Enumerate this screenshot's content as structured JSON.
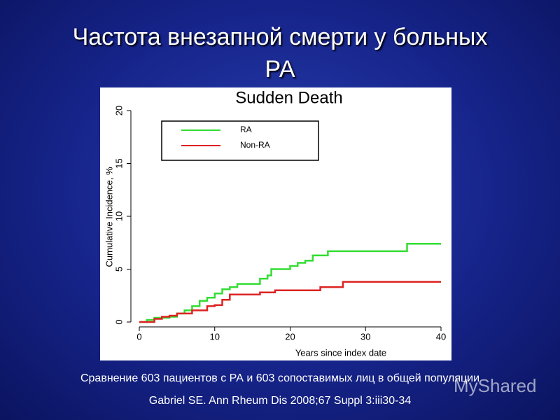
{
  "header": {
    "title_line1": "Частота внезапной смерти у больных",
    "title_line2": "РА"
  },
  "chart_data": {
    "type": "line",
    "title": "Sudden Death",
    "x_label": "Years since index date",
    "y_label": "Cumulative Incidence, %",
    "xlim": [
      0,
      40
    ],
    "ylim": [
      0,
      20
    ],
    "xticks": [
      0,
      10,
      20,
      30,
      40
    ],
    "yticks": [
      0,
      5,
      10,
      15,
      20
    ],
    "series": [
      {
        "name": "RA",
        "color": "#33dd33",
        "x": [
          0,
          1,
          1,
          2,
          2,
          4,
          4,
          5,
          5,
          6,
          6,
          7,
          7,
          8,
          8,
          9,
          9,
          10,
          10,
          11,
          11,
          12,
          12,
          13,
          13,
          16,
          16,
          17,
          17,
          17.5,
          17.5,
          20,
          20,
          21,
          21,
          22,
          22,
          23,
          23,
          25,
          25,
          35.5,
          35.5,
          40
        ],
        "values": [
          0,
          0,
          0.2,
          0.2,
          0.4,
          0.4,
          0.5,
          0.5,
          0.8,
          0.8,
          1.1,
          1.1,
          1.5,
          1.5,
          2,
          2,
          2.3,
          2.3,
          2.7,
          2.7,
          3.1,
          3.1,
          3.3,
          3.3,
          3.6,
          3.6,
          4.1,
          4.1,
          4.4,
          4.4,
          5,
          5,
          5.3,
          5.3,
          5.6,
          5.6,
          5.8,
          5.8,
          6.3,
          6.3,
          6.7,
          6.7,
          7.4,
          7.4
        ]
      },
      {
        "name": "Non-RA",
        "color": "#dd2222",
        "x": [
          0,
          2,
          2,
          3,
          3,
          4,
          4,
          5,
          5,
          7,
          7,
          9,
          9,
          10,
          10,
          11,
          11,
          12,
          12,
          16,
          16,
          18,
          18,
          24,
          24,
          27,
          27,
          40
        ],
        "values": [
          0,
          0,
          0.3,
          0.3,
          0.5,
          0.5,
          0.6,
          0.6,
          0.8,
          0.8,
          1.1,
          1.1,
          1.5,
          1.5,
          1.6,
          1.6,
          2.1,
          2.1,
          2.6,
          2.6,
          2.8,
          2.8,
          3,
          3,
          3.3,
          3.3,
          3.8,
          3.8
        ]
      }
    ]
  },
  "footer": {
    "caption": "Сравнение 603 пациентов с РА и 603 сопоставимых лиц в общей популяции",
    "citation": "Gabriel SE. Ann Rheum Dis 2008;67 Suppl 3:iii30-34"
  },
  "watermark": "MyShared"
}
